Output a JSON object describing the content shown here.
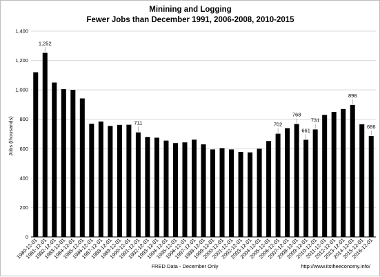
{
  "chart_data": {
    "type": "bar",
    "title": "Minining and Logging",
    "subtitle": "Fewer Jobs than December 1991, 2006-2008, 2010-2015",
    "ylabel": "Jobs (thousands)",
    "xlabel": "FRED Data - December Only",
    "source_note": "http://www.itstheeconomy.info/",
    "ylim": [
      0,
      1400
    ],
    "yticks": [
      "0",
      "200",
      "400",
      "600",
      "800",
      "1,000",
      "1,200",
      "1,400"
    ],
    "ytick_values": [
      0,
      200,
      400,
      600,
      800,
      1000,
      1200,
      1400
    ],
    "grid": true,
    "bar_color": "#000000",
    "grid_color": "#d9d9d9",
    "categories": [
      "1980-12-01",
      "1981-12-01",
      "1982-12-01",
      "1983-12-01",
      "1984-12-01",
      "1985-12-01",
      "1986-12-01",
      "1987-12-01",
      "1988-12-01",
      "1989-12-01",
      "1990-12-01",
      "1991-12-01",
      "1992-12-01",
      "1993-12-01",
      "1994-12-01",
      "1995-12-01",
      "1996-12-01",
      "1997-12-01",
      "1998-12-01",
      "1999-12-01",
      "2000-12-01",
      "2001-12-01",
      "2002-12-01",
      "2003-12-01",
      "2004-12-01",
      "2005-12-01",
      "2006-12-01",
      "2007-12-01",
      "2008-12-01",
      "2009-12-01",
      "2010-12-01",
      "2011-12-01",
      "2012-12-01",
      "2013-12-01",
      "2014-12-01",
      "2015-12-01",
      "2016-12-01"
    ],
    "values": [
      1120,
      1252,
      1050,
      1005,
      1000,
      942,
      770,
      785,
      755,
      762,
      763,
      711,
      680,
      675,
      655,
      638,
      643,
      662,
      630,
      595,
      604,
      595,
      578,
      575,
      600,
      652,
      702,
      740,
      768,
      661,
      731,
      830,
      850,
      870,
      898,
      766,
      686
    ],
    "data_labels": [
      {
        "index": 1,
        "text": "1,252"
      },
      {
        "index": 11,
        "text": "711"
      },
      {
        "index": 26,
        "text": "702"
      },
      {
        "index": 28,
        "text": "768"
      },
      {
        "index": 29,
        "text": "661"
      },
      {
        "index": 30,
        "text": "731"
      },
      {
        "index": 34,
        "text": "898"
      },
      {
        "index": 36,
        "text": "686"
      }
    ]
  }
}
